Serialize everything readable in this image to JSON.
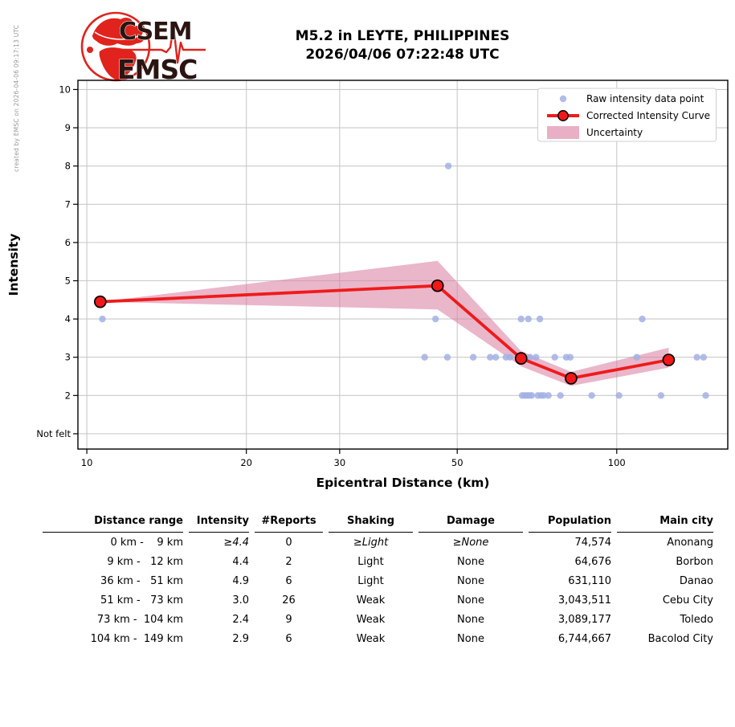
{
  "watermark": "created by EMSC on 2026-04-06 09:17:13 UTC",
  "header": {
    "logo_top": "CSEM",
    "logo_bottom": "EMSC",
    "title_line1": "M5.2 in LEYTE, PHILIPPINES",
    "title_line2": "2026/04/06 07:22:48 UTC"
  },
  "colors": {
    "curve_red": "#ee1b1b",
    "marker_red": "#f01818",
    "raw_point": "#a3b0e4",
    "band_pink": "#d97a9f",
    "grid": "#c9c9c9",
    "legend_border": "#cfcfcf",
    "logo_red": "#e0231c",
    "logo_text": "#2a1512"
  },
  "chart_data": {
    "type": "line",
    "title": "",
    "xlabel": "Epicentral Distance (km)",
    "ylabel": "Intensity",
    "x_scale": "log",
    "x_range": [
      9.62,
      162
    ],
    "x_ticks": [
      10,
      20,
      30,
      50,
      100
    ],
    "y_range": [
      0.6,
      10.24
    ],
    "y_ticks": [
      {
        "value": 10,
        "label": "10"
      },
      {
        "value": 9,
        "label": "9"
      },
      {
        "value": 8,
        "label": "8"
      },
      {
        "value": 7,
        "label": "7"
      },
      {
        "value": 6,
        "label": "6"
      },
      {
        "value": 5,
        "label": "5"
      },
      {
        "value": 4,
        "label": "4"
      },
      {
        "value": 3,
        "label": "3"
      },
      {
        "value": 2,
        "label": "2"
      },
      {
        "value": 1,
        "label": "Not felt"
      }
    ],
    "grid": true,
    "legend_position": "upper right",
    "legend": [
      {
        "label": "Raw intensity data point",
        "type": "point"
      },
      {
        "label": "Corrected Intensity Curve",
        "type": "line-marker"
      },
      {
        "label": "Uncertainty",
        "type": "band"
      }
    ],
    "corrected_curve": {
      "x": [
        10.6,
        45.9,
        66.0,
        82.0,
        125.3
      ],
      "y": [
        4.45,
        4.87,
        2.97,
        2.45,
        2.93
      ]
    },
    "uncertainty_band": {
      "x": [
        10.6,
        45.9,
        66.0,
        82.0,
        125.3
      ],
      "upper": [
        4.45,
        5.52,
        3.16,
        2.62,
        3.25
      ],
      "lower": [
        4.45,
        4.25,
        2.76,
        2.25,
        2.73
      ]
    },
    "raw_points": [
      [
        10.7,
        4
      ],
      [
        48.1,
        8
      ],
      [
        45.5,
        4
      ],
      [
        66.0,
        4
      ],
      [
        68.1,
        4
      ],
      [
        71.6,
        4
      ],
      [
        111.7,
        4
      ],
      [
        43.4,
        3
      ],
      [
        47.9,
        3
      ],
      [
        53.6,
        3
      ],
      [
        57.7,
        3
      ],
      [
        59.1,
        3
      ],
      [
        61.8,
        3
      ],
      [
        62.9,
        3
      ],
      [
        68.6,
        3
      ],
      [
        70.4,
        3
      ],
      [
        76.4,
        3
      ],
      [
        80.3,
        3
      ],
      [
        81.7,
        3
      ],
      [
        109.1,
        3
      ],
      [
        141.7,
        3
      ],
      [
        145.8,
        3
      ],
      [
        66.3,
        2
      ],
      [
        67.0,
        2
      ],
      [
        67.7,
        2
      ],
      [
        68.4,
        2
      ],
      [
        69.1,
        2
      ],
      [
        71.0,
        2
      ],
      [
        72.0,
        2
      ],
      [
        72.8,
        2
      ],
      [
        74.3,
        2
      ],
      [
        78.3,
        2
      ],
      [
        89.7,
        2
      ],
      [
        101.0,
        2
      ],
      [
        121.2,
        2
      ],
      [
        147.2,
        2
      ]
    ]
  },
  "table": {
    "headers": [
      "Distance range",
      "Intensity",
      "#Reports",
      "Shaking",
      "Damage",
      "Population",
      "Main city"
    ],
    "rows": [
      {
        "cells": [
          "0 km -    9 km",
          "≥4.4",
          "0",
          "≥Light",
          "≥None",
          "74,574",
          "Anonang"
        ],
        "italic_cells": [
          1,
          3,
          4
        ]
      },
      {
        "cells": [
          "9 km -   12 km",
          "4.4",
          "2",
          "Light",
          "None",
          "64,676",
          "Borbon"
        ],
        "italic_cells": []
      },
      {
        "cells": [
          "36 km -   51 km",
          "4.9",
          "6",
          "Light",
          "None",
          "631,110",
          "Danao"
        ],
        "italic_cells": []
      },
      {
        "cells": [
          "51 km -   73 km",
          "3.0",
          "26",
          "Weak",
          "None",
          "3,043,511",
          "Cebu City"
        ],
        "italic_cells": []
      },
      {
        "cells": [
          "73 km -  104 km",
          "2.4",
          "9",
          "Weak",
          "None",
          "3,089,177",
          "Toledo"
        ],
        "italic_cells": []
      },
      {
        "cells": [
          "104 km -  149 km",
          "2.9",
          "6",
          "Weak",
          "None",
          "6,744,667",
          "Bacolod City"
        ],
        "italic_cells": []
      }
    ]
  }
}
